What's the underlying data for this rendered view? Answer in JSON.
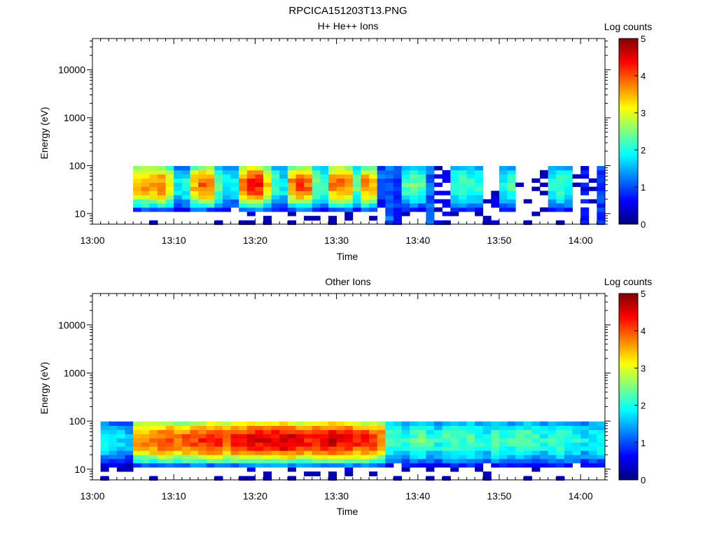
{
  "figure_title": "RPCICA151203T13.PNG",
  "colorbar_scale": "jet",
  "chart_data": [
    {
      "type": "heatmap",
      "title": "H+ He++ Ions",
      "xlabel": "Time",
      "ylabel": "Energy (eV)",
      "y_scale": "log",
      "ylim": [
        6,
        45000
      ],
      "xlim": [
        "13:00",
        "14:03"
      ],
      "x_ticks": [
        "13:00",
        "13:10",
        "13:20",
        "13:30",
        "13:40",
        "13:50",
        "14:00"
      ],
      "y_ticks": [
        "10",
        "100",
        "1000",
        "10000"
      ],
      "colorbar": {
        "label": "Log counts",
        "range": [
          0,
          5
        ],
        "ticks": [
          "0",
          "1",
          "2",
          "3",
          "4",
          "5"
        ]
      },
      "energy_bins_eV": [
        6.5,
        8,
        10,
        12,
        15,
        18,
        22,
        27,
        33,
        40,
        49,
        60,
        73,
        89
      ],
      "time_columns": [
        "13:00",
        "13:01",
        "13:02",
        "13:03",
        "13:04",
        "13:05",
        "13:06",
        "13:07",
        "13:08",
        "13:09",
        "13:10",
        "13:11",
        "13:12",
        "13:13",
        "13:14",
        "13:15",
        "13:16",
        "13:17",
        "13:18",
        "13:19",
        "13:20",
        "13:21",
        "13:22",
        "13:23",
        "13:24",
        "13:25",
        "13:26",
        "13:27",
        "13:28",
        "13:29",
        "13:30",
        "13:31",
        "13:32",
        "13:33",
        "13:34",
        "13:35",
        "13:36",
        "13:37",
        "13:38",
        "13:39",
        "13:40",
        "13:41",
        "13:42",
        "13:43",
        "13:44",
        "13:45",
        "13:46",
        "13:47",
        "13:48",
        "13:49",
        "13:50",
        "13:51",
        "13:52",
        "13:53",
        "13:54",
        "13:55",
        "13:56",
        "13:57",
        "13:58",
        "13:59",
        "14:00",
        "14:01",
        "14:02"
      ],
      "profile": [
        0,
        0,
        0,
        0,
        0,
        3.4,
        3.7,
        3.7,
        3.8,
        3.2,
        1.9,
        2.0,
        3.5,
        3.9,
        3.8,
        2.4,
        1.9,
        1.8,
        3.9,
        4.3,
        4.3,
        3.4,
        2.3,
        1.9,
        3.7,
        4.1,
        3.9,
        2.5,
        2.2,
        3.7,
        3.9,
        3.6,
        2.4,
        3.7,
        3.4,
        1.2,
        1.1,
        0.9,
        2.3,
        2.4,
        2.2,
        1.1,
        0.4,
        0.4,
        2.1,
        2.3,
        2.2,
        2.1,
        0.3,
        0.3,
        2.0,
        2.2,
        0.2,
        0.2,
        0.1,
        0.2,
        2.1,
        2.3,
        2.1,
        0.2,
        0.6,
        0.2,
        0.9
      ],
      "peak_eV": 40
    },
    {
      "type": "heatmap",
      "title": "Other Ions",
      "xlabel": "Time",
      "ylabel": "Energy (eV)",
      "y_scale": "log",
      "ylim": [
        6,
        45000
      ],
      "xlim": [
        "13:00",
        "14:03"
      ],
      "x_ticks": [
        "13:00",
        "13:10",
        "13:20",
        "13:30",
        "13:40",
        "13:50",
        "14:00"
      ],
      "y_ticks": [
        "10",
        "100",
        "1000",
        "10000"
      ],
      "colorbar": {
        "label": "Log counts",
        "range": [
          0,
          5
        ],
        "ticks": [
          "0",
          "1",
          "2",
          "3",
          "4",
          "5"
        ]
      },
      "energy_bins_eV": [
        6.5,
        8,
        10,
        12,
        15,
        18,
        22,
        27,
        33,
        40,
        49,
        60,
        73,
        89
      ],
      "time_columns": [
        "13:00",
        "13:01",
        "13:02",
        "13:03",
        "13:04",
        "13:05",
        "13:06",
        "13:07",
        "13:08",
        "13:09",
        "13:10",
        "13:11",
        "13:12",
        "13:13",
        "13:14",
        "13:15",
        "13:16",
        "13:17",
        "13:18",
        "13:19",
        "13:20",
        "13:21",
        "13:22",
        "13:23",
        "13:24",
        "13:25",
        "13:26",
        "13:27",
        "13:28",
        "13:29",
        "13:30",
        "13:31",
        "13:32",
        "13:33",
        "13:34",
        "13:35",
        "13:36",
        "13:37",
        "13:38",
        "13:39",
        "13:40",
        "13:41",
        "13:42",
        "13:43",
        "13:44",
        "13:45",
        "13:46",
        "13:47",
        "13:48",
        "13:49",
        "13:50",
        "13:51",
        "13:52",
        "13:53",
        "13:54",
        "13:55",
        "13:56",
        "13:57",
        "13:58",
        "13:59",
        "14:00",
        "14:01",
        "14:02"
      ],
      "profile": [
        0,
        1.9,
        1.8,
        1.7,
        1.5,
        3.6,
        3.8,
        3.9,
        4.0,
        4.1,
        3.9,
        4.0,
        4.1,
        4.2,
        4.3,
        4.3,
        4.0,
        4.3,
        4.4,
        4.5,
        4.5,
        4.6,
        4.6,
        4.7,
        4.6,
        4.4,
        4.3,
        4.4,
        4.5,
        4.6,
        4.5,
        4.4,
        4.2,
        4.3,
        4.1,
        3.9,
        2.3,
        2.2,
        2.1,
        2.3,
        2.4,
        2.1,
        2.0,
        2.2,
        2.3,
        2.2,
        2.4,
        2.1,
        2.0,
        2.3,
        2.2,
        2.1,
        2.2,
        2.3,
        2.1,
        2.0,
        2.2,
        2.3,
        2.1,
        2.0,
        1.8,
        1.9,
        2.0
      ],
      "peak_eV": 40
    }
  ]
}
